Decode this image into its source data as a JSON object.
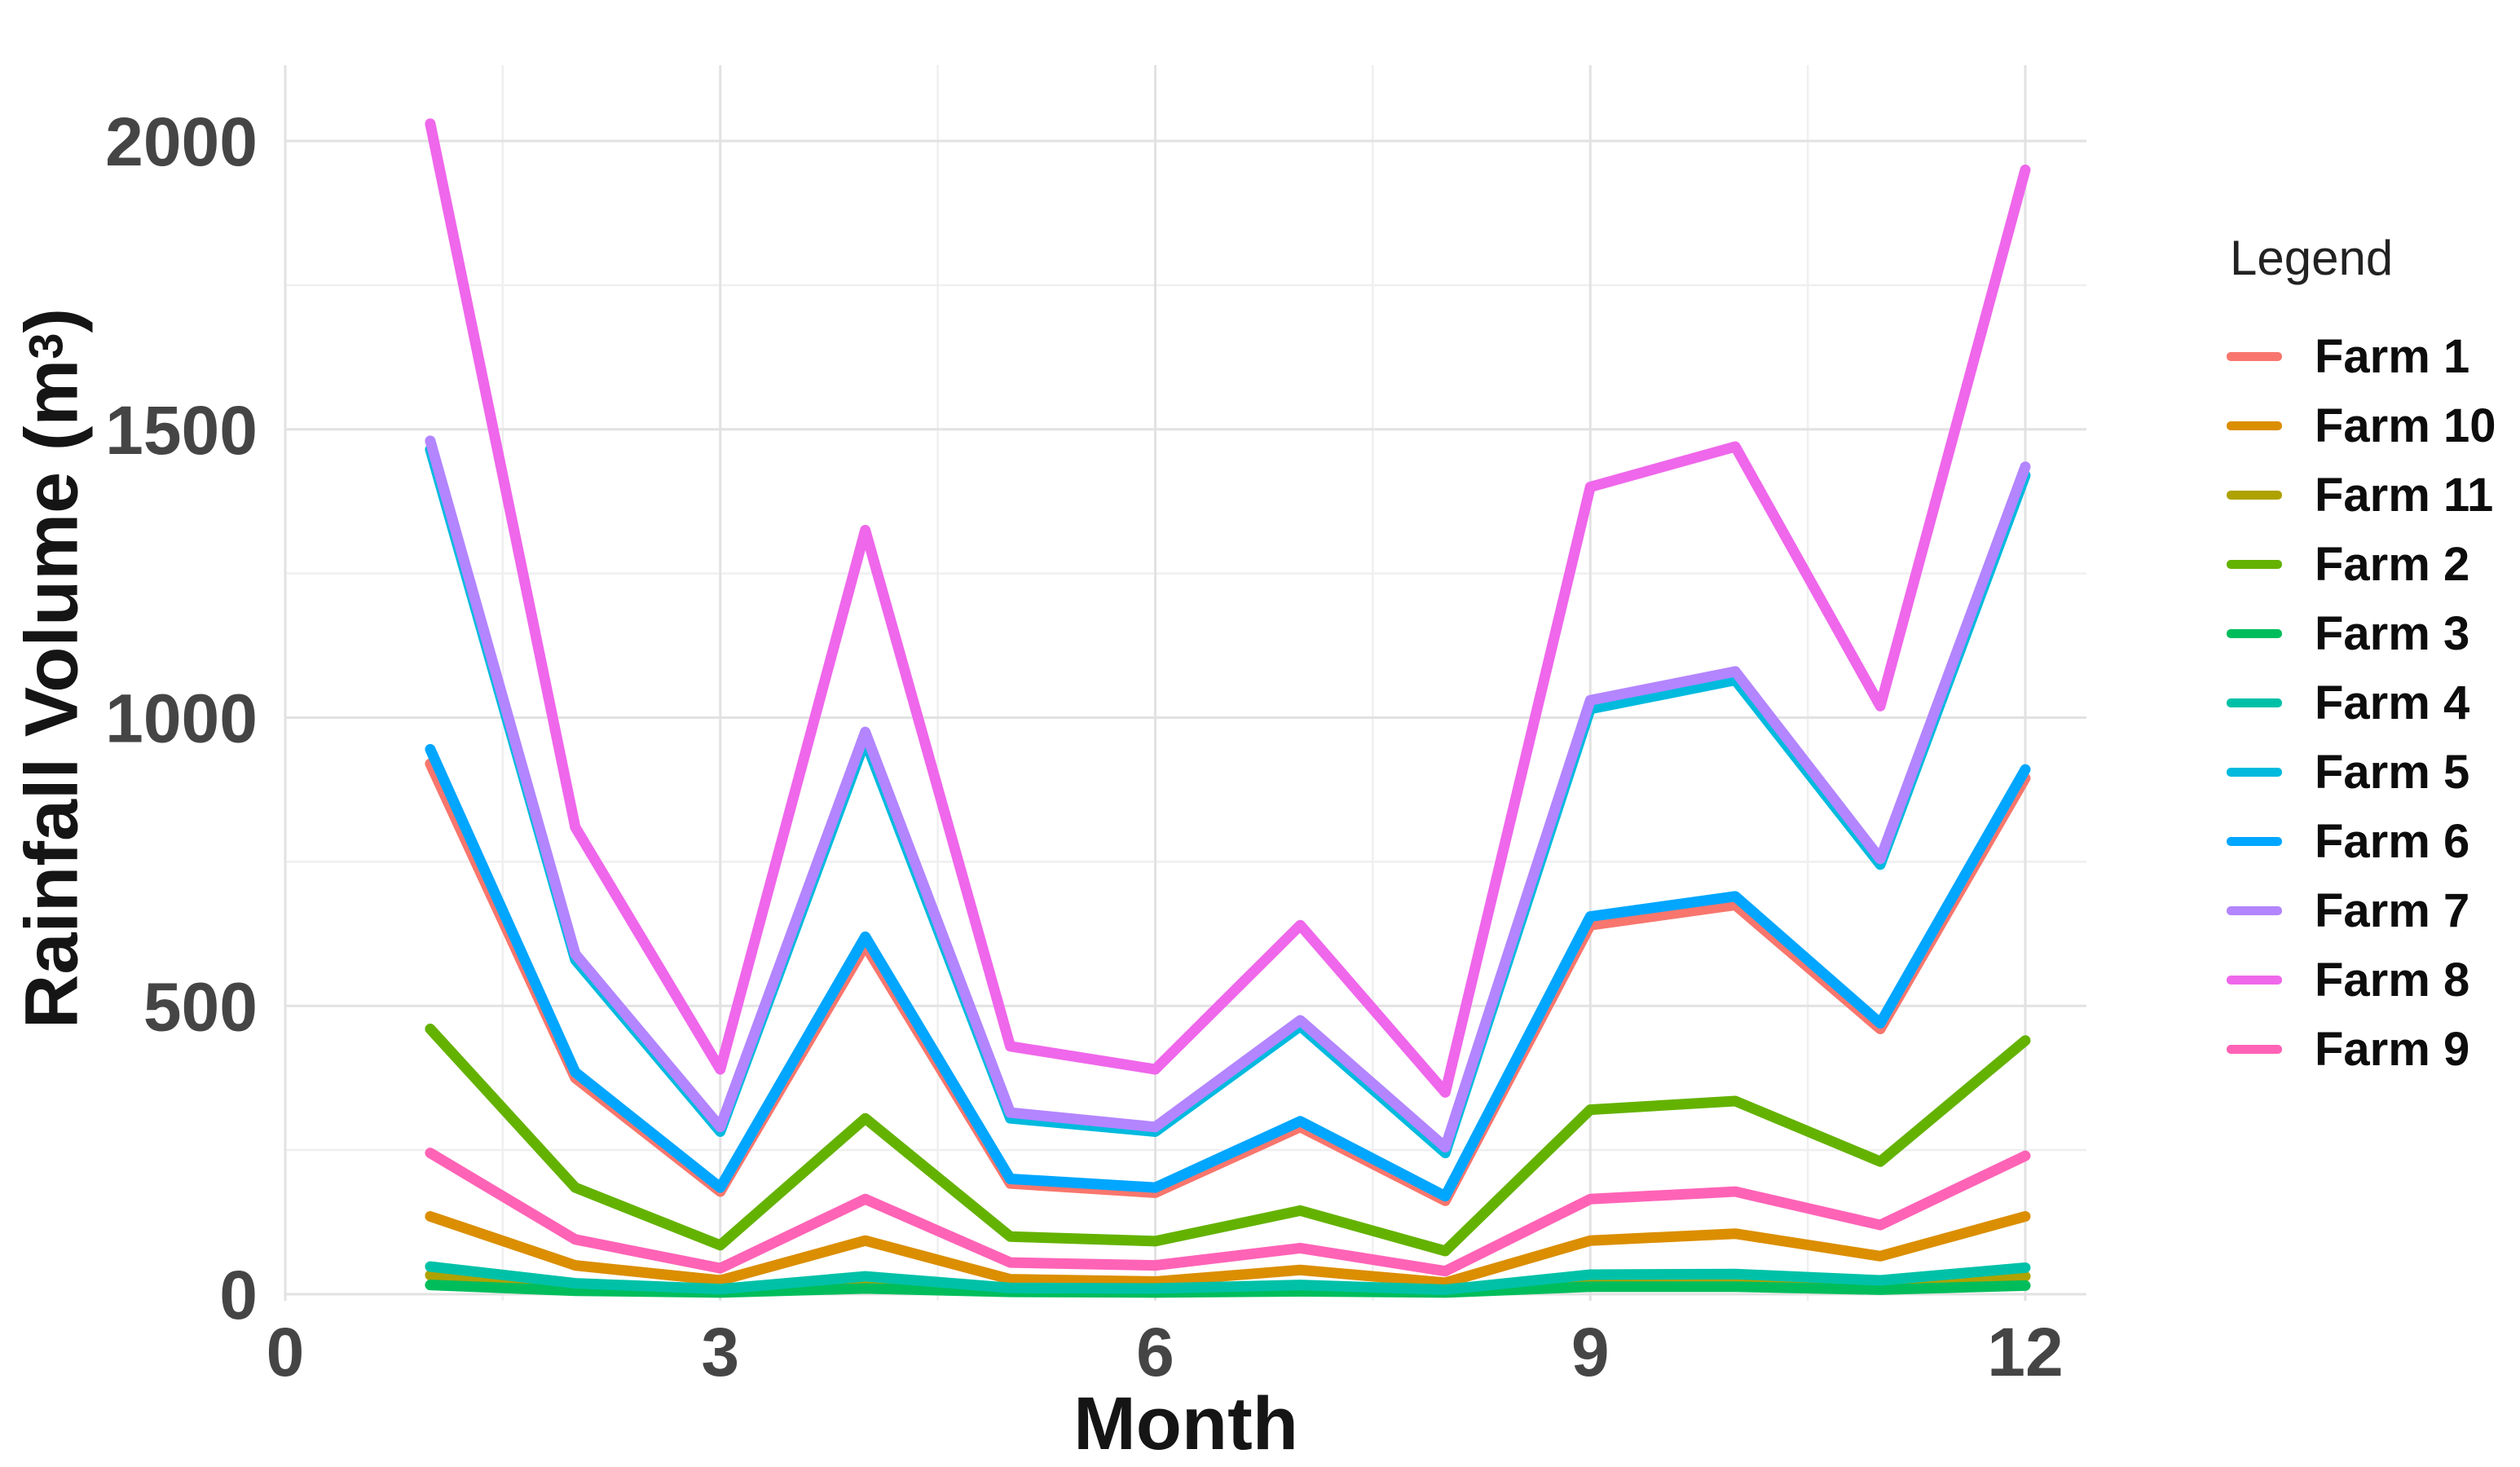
{
  "chart_data": {
    "type": "line",
    "title": "",
    "xlabel": "Month",
    "ylabel": {
      "main": "Rainfall Volume (m",
      "sup": "3",
      "end": ")"
    },
    "x": [
      1,
      2,
      3,
      4,
      5,
      6,
      7,
      8,
      9,
      10,
      11,
      12
    ],
    "xlim": [
      0,
      12.45
    ],
    "ylim": [
      0,
      2100
    ],
    "grid": true,
    "x_ticks": [
      {
        "v": 0,
        "label": "0"
      },
      {
        "v": 3,
        "label": "3"
      },
      {
        "v": 6,
        "label": "6"
      },
      {
        "v": 9,
        "label": "9"
      },
      {
        "v": 12,
        "label": "12"
      }
    ],
    "y_ticks": [
      {
        "v": 0,
        "label": "0"
      },
      {
        "v": 500,
        "label": "500"
      },
      {
        "v": 1000,
        "label": "1000"
      },
      {
        "v": 1500,
        "label": "1500"
      },
      {
        "v": 2000,
        "label": "2000"
      }
    ],
    "minor_x": [
      1.5,
      4.5,
      7.5,
      10.5
    ],
    "minor_y": [
      250,
      750,
      1250,
      1750
    ],
    "series": [
      {
        "name": "Farm 1",
        "color": "#F8766D",
        "values": [
          920,
          375,
          178,
          605,
          192,
          176,
          290,
          162,
          640,
          675,
          460,
          895
        ]
      },
      {
        "name": "Farm 10",
        "color": "#DB8E00",
        "values": [
          135,
          50,
          24,
          93,
          26,
          22,
          42,
          20,
          93,
          105,
          66,
          135
        ]
      },
      {
        "name": "Farm 11",
        "color": "#AEA200",
        "values": [
          33,
          13,
          6,
          21,
          7,
          6,
          10,
          5,
          25,
          26,
          17,
          31
        ]
      },
      {
        "name": "Farm 2",
        "color": "#64B200",
        "values": [
          460,
          185,
          85,
          305,
          100,
          92,
          145,
          75,
          320,
          335,
          230,
          440
        ]
      },
      {
        "name": "Farm 3",
        "color": "#00BD5C",
        "values": [
          16,
          6,
          3,
          10,
          4,
          3,
          5,
          3,
          13,
          13,
          8,
          15
        ]
      },
      {
        "name": "Farm 4",
        "color": "#00C1A7",
        "values": [
          48,
          19,
          9,
          31,
          11,
          10,
          16,
          8,
          34,
          35,
          24,
          46
        ]
      },
      {
        "name": "Farm 5",
        "color": "#00BADE",
        "values": [
          1465,
          580,
          282,
          960,
          305,
          282,
          465,
          245,
          1015,
          1065,
          745,
          1420
        ]
      },
      {
        "name": "Farm 6",
        "color": "#00A6FF",
        "values": [
          945,
          385,
          185,
          620,
          200,
          185,
          300,
          170,
          655,
          690,
          470,
          910
        ]
      },
      {
        "name": "Farm 7",
        "color": "#B385FF",
        "values": [
          1480,
          590,
          290,
          975,
          315,
          290,
          475,
          255,
          1030,
          1080,
          755,
          1435
        ]
      },
      {
        "name": "Farm 8",
        "color": "#EF67EB",
        "values": [
          2030,
          810,
          390,
          1325,
          430,
          390,
          640,
          350,
          1400,
          1470,
          1020,
          1950
        ]
      },
      {
        "name": "Farm 9",
        "color": "#FF63B6",
        "values": [
          245,
          95,
          45,
          165,
          55,
          50,
          80,
          40,
          165,
          178,
          120,
          240
        ]
      }
    ],
    "legend": {
      "title": "Legend",
      "position": "right",
      "items": [
        {
          "label": "Farm 1",
          "color": "#F8766D"
        },
        {
          "label": "Farm 10",
          "color": "#DB8E00"
        },
        {
          "label": "Farm 11",
          "color": "#AEA200"
        },
        {
          "label": "Farm 2",
          "color": "#64B200"
        },
        {
          "label": "Farm 3",
          "color": "#00BD5C"
        },
        {
          "label": "Farm 4",
          "color": "#00C1A7"
        },
        {
          "label": "Farm 5",
          "color": "#00BADE"
        },
        {
          "label": "Farm 6",
          "color": "#00A6FF"
        },
        {
          "label": "Farm 7",
          "color": "#B385FF"
        },
        {
          "label": "Farm 8",
          "color": "#EF67EB"
        },
        {
          "label": "Farm 9",
          "color": "#FF63B6"
        }
      ]
    },
    "grid_colors": {
      "major": "#E2E2E2",
      "minor": "#EFEFEF"
    },
    "tick_text_color": "#454545",
    "line_width": 13
  }
}
